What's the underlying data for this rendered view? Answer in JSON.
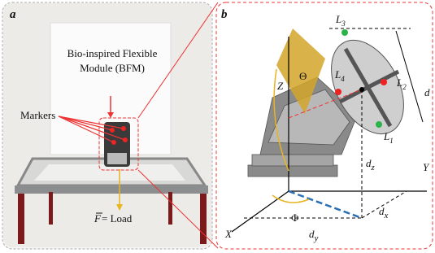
{
  "panel_a": {
    "label": "a",
    "title_lines": [
      "Bio-inspired Flexible",
      "Module (BFM)"
    ],
    "markers": "Markers",
    "force": {
      "vector": "F",
      "text": "= Load"
    }
  },
  "panel_b": {
    "label": "b",
    "points": [
      {
        "base": "L",
        "sub": "3"
      },
      {
        "base": "L",
        "sub": "2"
      },
      {
        "base": "L",
        "sub": "4"
      },
      {
        "base": "L",
        "sub": "1"
      }
    ],
    "diameter": "d",
    "theta": "Θ",
    "phi": "Φ",
    "axes": {
      "z": "Z",
      "y": "Y",
      "x": "X"
    },
    "distances": [
      {
        "base": "d",
        "sub": "z"
      },
      {
        "base": "d",
        "sub": "x"
      },
      {
        "base": "d",
        "sub": "y"
      }
    ]
  }
}
